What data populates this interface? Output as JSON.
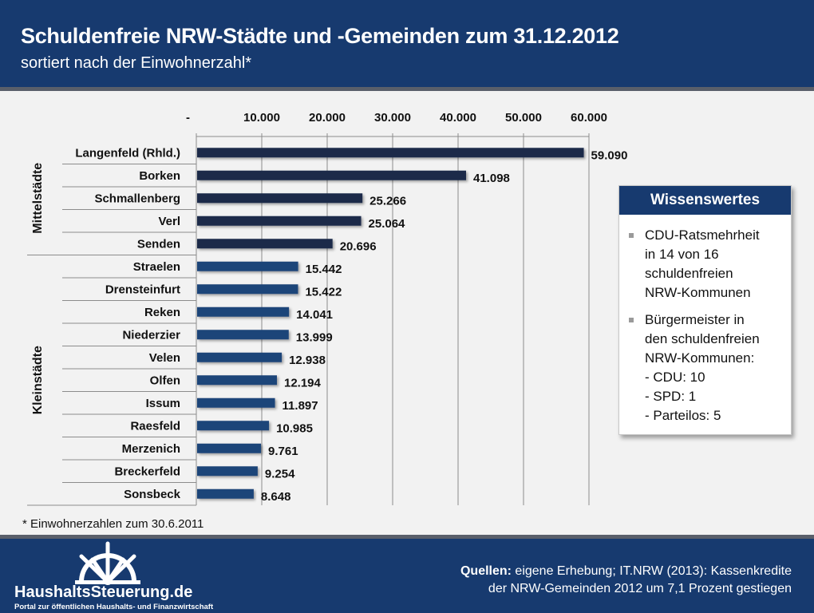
{
  "header": {
    "title": "Schuldenfreie NRW-Städte und -Gemeinden zum 31.12.2012",
    "subtitle": "sortiert nach der Einwohnerzahl*"
  },
  "chart_data": {
    "type": "bar",
    "orientation": "horizontal",
    "title": "Schuldenfreie NRW-Städte und -Gemeinden zum 31.12.2012",
    "subtitle": "sortiert nach der Einwohnerzahl*",
    "xlabel": "",
    "ylabel": "",
    "xlim": [
      0,
      60000
    ],
    "x_ticks": [
      "-",
      "10.000",
      "20.000",
      "30.000",
      "40.000",
      "50.000",
      "60.000"
    ],
    "x_tick_values": [
      0,
      10000,
      20000,
      30000,
      40000,
      50000,
      60000
    ],
    "x_axis_position": "top",
    "grid": true,
    "categories": [
      "Langenfeld (Rhld.)",
      "Borken",
      "Schmallenberg",
      "Verl",
      "Senden",
      "Straelen",
      "Drensteinfurt",
      "Reken",
      "Niederzier",
      "Velen",
      "Olfen",
      "Issum",
      "Raesfeld",
      "Merzenich",
      "Breckerfeld",
      "Sonsbeck"
    ],
    "values": [
      59090,
      41098,
      25266,
      25064,
      20696,
      15442,
      15422,
      14041,
      13999,
      12938,
      12194,
      11897,
      10985,
      9761,
      9254,
      8648
    ],
    "value_labels": [
      "59.090",
      "41.098",
      "25.266",
      "25.064",
      "20.696",
      "15.442",
      "15.422",
      "14.041",
      "13.999",
      "12.938",
      "12.194",
      "11.897",
      "10.985",
      "9.761",
      "9.254",
      "8.648"
    ],
    "groups": [
      {
        "name": "Mittelstädte",
        "start": 0,
        "count": 5,
        "color": "#1a2c4a"
      },
      {
        "name": "Kleinstädte",
        "start": 5,
        "count": 11,
        "color": "#1e4479"
      }
    ]
  },
  "infobox": {
    "title": "Wissenswertes",
    "items": [
      {
        "lines": [
          "CDU-Ratsmehrheit",
          "in 14 von 16",
          "schuldenfreien",
          "NRW-Kommunen"
        ]
      },
      {
        "lines": [
          "Bürgermeister in",
          "den schuldenfreien",
          "NRW-Kommunen:",
          "- CDU: 10",
          "- SPD: 1",
          "- Parteilos: 5"
        ]
      }
    ]
  },
  "footnote": "* Einwohnerzahlen zum 30.6.2011",
  "footer": {
    "logo_name": "HaushaltsSteuerung.de",
    "logo_tagline": "Portal zur öffentlichen Haushalts- und Finanzwirtschaft",
    "logo_icon": "ship-wheel-icon",
    "sources_label": "Quellen:",
    "sources_line1": " eigene  Erhebung; IT.NRW (2013): Kassenkredite",
    "sources_line2": "der NRW-Gemeinden 2012 um 7,1 Prozent gestiegen"
  },
  "colors": {
    "header_bg": "#173a6f",
    "bar_mittelstaedte": "#1a2c4a",
    "bar_kleinstaedte": "#1e4479",
    "background": "#f2f2f2"
  }
}
